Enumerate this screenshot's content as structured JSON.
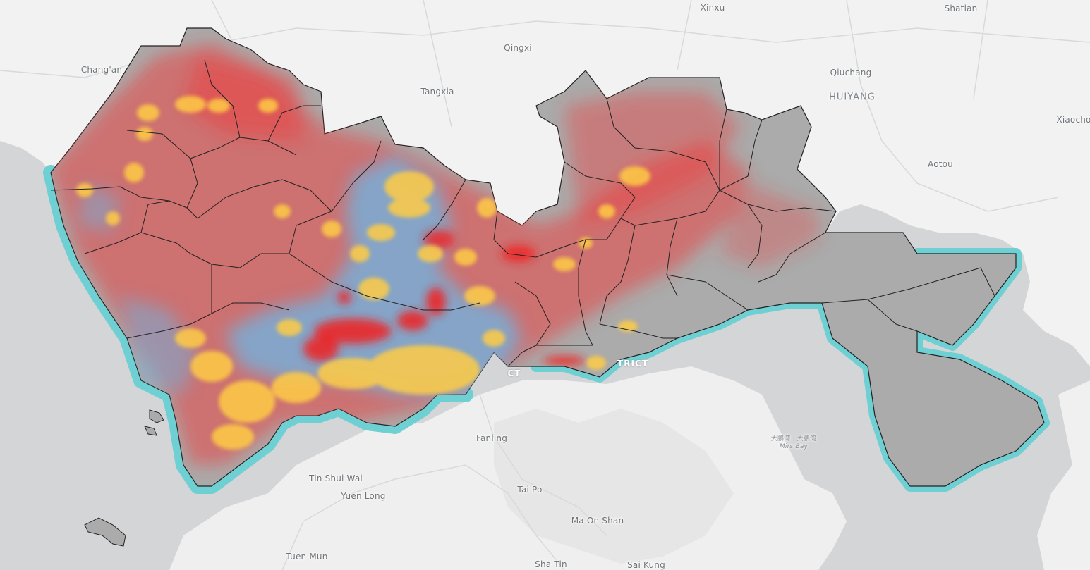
{
  "map": {
    "colors": {
      "water": "#d3d5d7",
      "land": "#f2f2f2",
      "coast_buffer": "#6fd0d3",
      "district_fill": "#ababab",
      "district_stroke": "#222222",
      "overlay_red": "#f03a3a",
      "overlay_blue": "#6cb6e4",
      "overlay_yellow": "#ffcc44"
    },
    "labels": {
      "xinxu": "Xinxu",
      "shatian": "Shatian",
      "qingxi": "Qingxi",
      "changan": "Chang'an",
      "qiuchang": "Qiuchang",
      "huiyang": "HUIYANG",
      "tangxia": "Tangxia",
      "xiaocho": "Xiaocho",
      "aotou": "Aotou",
      "fanling": "Fanling",
      "tin_shui_wai": "Tin Shui Wai",
      "yuen_long": "Yuen Long",
      "tai_po": "Tai Po",
      "ma_on_shan": "Ma On Shan",
      "tuen_mun": "Tuen Mun",
      "sha_tin": "Sha Tin",
      "sai_kung": "Sai Kung",
      "district_ct": "CT",
      "district_trict": "TRICT",
      "mirs_bay_cn": "大鹏湾 · 大鵬灣",
      "mirs_bay_en": "Mirs Bay"
    }
  }
}
